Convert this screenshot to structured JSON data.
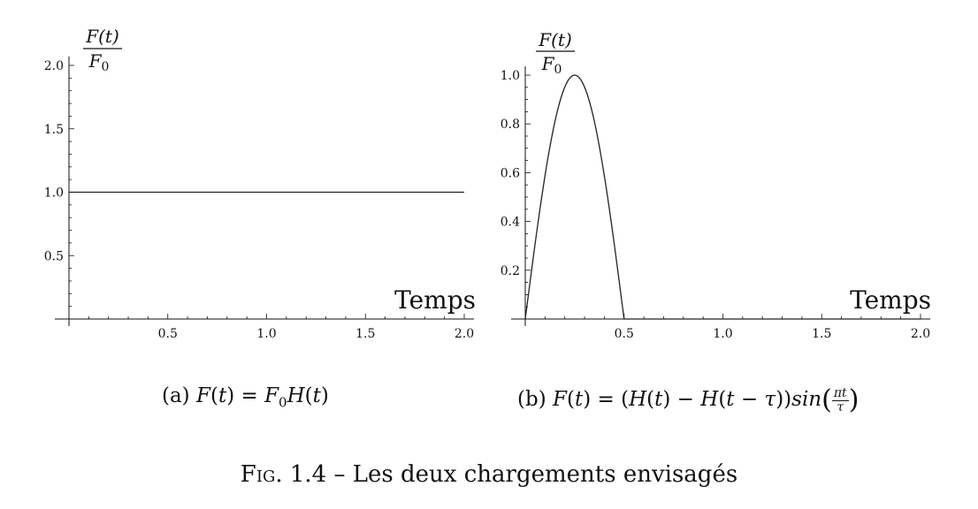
{
  "chart_data": [
    {
      "type": "line",
      "panel": "a",
      "ylabel_num": "F(t)",
      "ylabel_den": "F",
      "ylabel_den_sub": "0",
      "xlabel": "Temps",
      "xlim": [
        0,
        2.0
      ],
      "ylim": [
        0,
        2.0
      ],
      "xticks": [
        "0.5",
        "1.0",
        "1.5",
        "2.0"
      ],
      "xtick_values": [
        0.5,
        1.0,
        1.5,
        2.0
      ],
      "yticks": [
        "0.5",
        "1.0",
        "1.5",
        "2.0"
      ],
      "ytick_values": [
        0.5,
        1.0,
        1.5,
        2.0
      ],
      "series": [
        {
          "x": [
            0,
            2.0
          ],
          "y": [
            1.0,
            1.0
          ]
        }
      ],
      "caption_prefix": "(a)",
      "caption_formula": "F(t) = F0H(t)"
    },
    {
      "type": "line",
      "panel": "b",
      "ylabel_num": "F(t)",
      "ylabel_den": "F",
      "ylabel_den_sub": "0",
      "xlabel": "Temps",
      "xlim": [
        0,
        2.0
      ],
      "ylim": [
        0,
        1.0
      ],
      "xticks": [
        "0.5",
        "1.0",
        "1.5",
        "2.0"
      ],
      "xtick_values": [
        0.5,
        1.0,
        1.5,
        2.0
      ],
      "yticks": [
        "0.2",
        "0.4",
        "0.6",
        "0.8",
        "1.0"
      ],
      "ytick_values": [
        0.2,
        0.4,
        0.6,
        0.8,
        1.0
      ],
      "series": [
        {
          "x": [
            0,
            0.05,
            0.1,
            0.15,
            0.2,
            0.25,
            0.3,
            0.35,
            0.4,
            0.45,
            0.5,
            2.0
          ],
          "y": [
            0,
            0.309,
            0.588,
            0.809,
            0.951,
            1.0,
            0.951,
            0.809,
            0.588,
            0.309,
            0,
            0
          ]
        }
      ],
      "caption_prefix": "(b)",
      "caption_formula": "F(t) = (H(t) − H(t − τ))sin(πt/τ)"
    }
  ],
  "figure_caption": {
    "label": "Fig.",
    "number": "1.4",
    "dash": "–",
    "text": "Les deux chargements envisagés"
  },
  "caption_a": {
    "prefix": "(a)",
    "F": "F",
    "t": "t",
    "eq": "=",
    "F0": "F",
    "sub0": "0",
    "H": "H"
  },
  "caption_b": {
    "prefix": "(b)",
    "pi": "π",
    "tau": "τ",
    "sin": "sin",
    "minus": "−"
  }
}
